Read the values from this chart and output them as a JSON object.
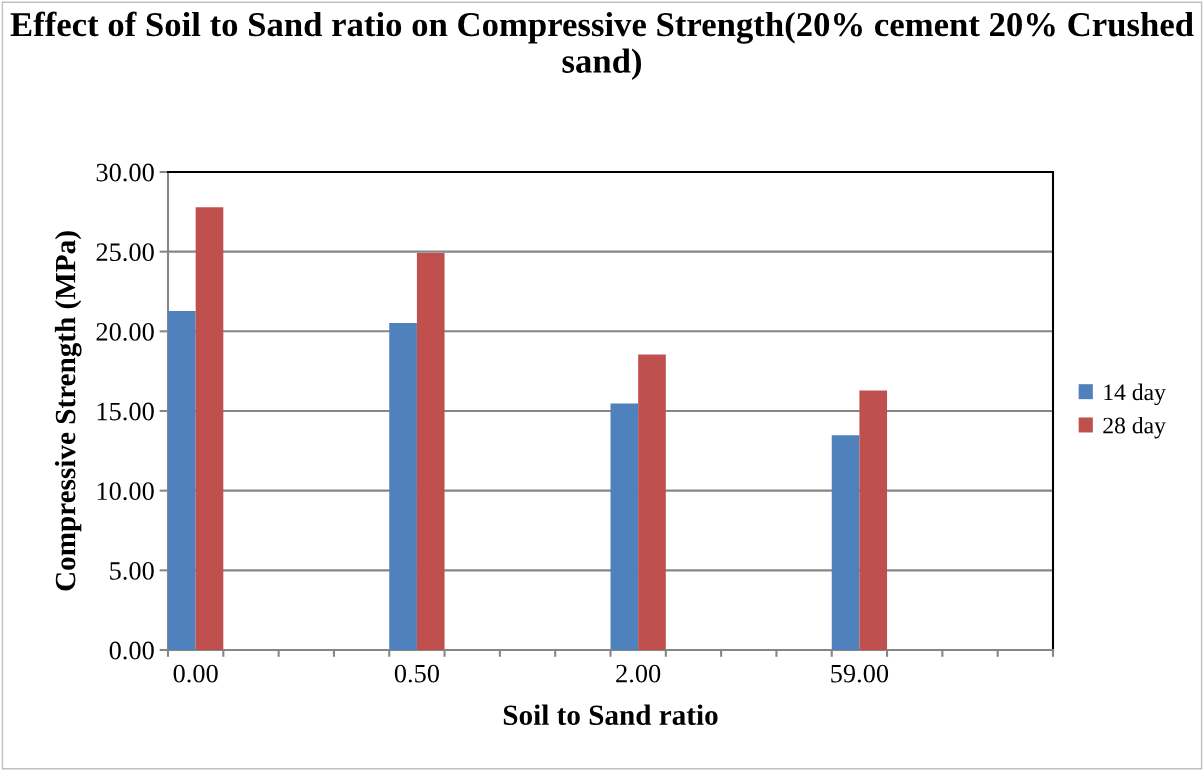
{
  "chart_data": {
    "type": "bar",
    "title": "Effect of Soil to Sand ratio on Compressive Strength(20% cement 20% Crushed sand)",
    "xlabel": "Soil to Sand ratio",
    "ylabel": "Compressive Strength (MPa)",
    "categories": [
      "0.00",
      null,
      null,
      null,
      "0.50",
      null,
      null,
      null,
      "2.00",
      null,
      null,
      null,
      "59.00",
      null,
      null,
      null
    ],
    "series": [
      {
        "name": "14 day",
        "color": "#4f81bd",
        "values": [
          21.27,
          null,
          null,
          null,
          20.52,
          null,
          null,
          null,
          15.47,
          null,
          null,
          null,
          13.48,
          null,
          null,
          null
        ]
      },
      {
        "name": "28 day",
        "color": "#c0504d",
        "values": [
          27.78,
          null,
          null,
          null,
          24.92,
          null,
          null,
          null,
          18.54,
          null,
          null,
          null,
          16.28,
          null,
          null,
          null
        ]
      }
    ],
    "ylim": [
      0,
      30
    ],
    "yticks": [
      {
        "value": 0,
        "label": "0.00"
      },
      {
        "value": 5,
        "label": "5.00"
      },
      {
        "value": 10,
        "label": "10.00"
      },
      {
        "value": 15,
        "label": "15.00"
      },
      {
        "value": 20,
        "label": "20.00"
      },
      {
        "value": 25,
        "label": "25.00"
      },
      {
        "value": 30,
        "label": "30.00"
      }
    ],
    "grid": "y",
    "legend": "right"
  }
}
